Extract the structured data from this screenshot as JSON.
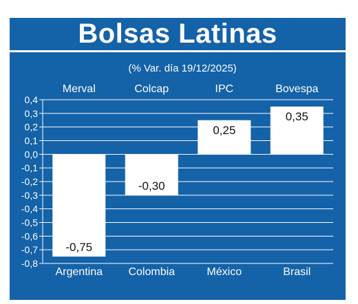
{
  "header": {
    "title": "Bolsas Latinas",
    "subtitle": "(% Var. día 19/12/2025)"
  },
  "colors": {
    "background": "#1462a8",
    "bars": "#ffffff",
    "text_light": "#ffffff",
    "text_dark": "#111111"
  },
  "chart_data": {
    "type": "bar",
    "title": "Bolsas Latinas",
    "subtitle": "(% Var. día 19/12/2025)",
    "index_labels": [
      "Merval",
      "Colcap",
      "IPC",
      "Bovespa"
    ],
    "categories": [
      "Argentina",
      "Colombia",
      "México",
      "Brasil"
    ],
    "values": [
      -0.75,
      -0.3,
      0.25,
      0.35
    ],
    "data_labels": [
      "-0,75",
      "-0,30",
      "0,25",
      "0,35"
    ],
    "ylim": [
      -0.8,
      0.4
    ],
    "yticks": [
      0.4,
      0.3,
      0.2,
      0.1,
      0.0,
      -0.1,
      -0.2,
      -0.3,
      -0.4,
      -0.5,
      -0.6,
      -0.7,
      -0.8
    ],
    "ytick_labels": [
      "0,4",
      "0,3",
      "0,2",
      "0,1",
      "0,0",
      "-0,1",
      "-0,2",
      "-0,3",
      "-0,4",
      "-0,5",
      "-0,6",
      "-0,7",
      "-0,8"
    ],
    "grid": true,
    "legend": "none"
  }
}
